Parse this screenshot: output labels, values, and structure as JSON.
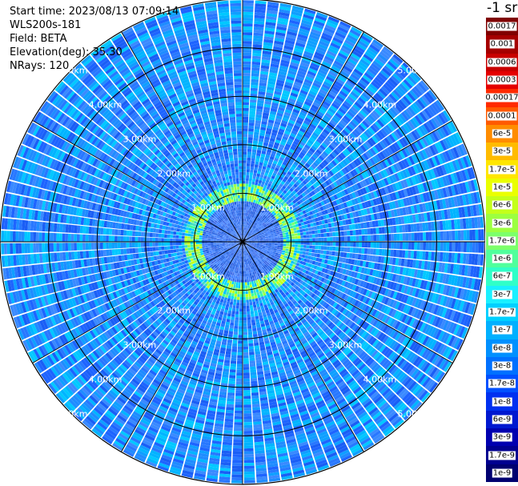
{
  "info": {
    "start_time": "Start time: 2023/08/13 07:09:14",
    "device": "WLS200s-181",
    "field": "Field: BETA",
    "elevation": "Elevation(deg): 35.30",
    "nrays": "NRays: 120"
  },
  "colorbar": {
    "title": "-1 sr",
    "levels": [
      {
        "label": "0.0017",
        "color": "#800000"
      },
      {
        "label": "0.001",
        "color": "#a50000"
      },
      {
        "label": "0.0006",
        "color": "#c80000"
      },
      {
        "label": "0.0003",
        "color": "#e40000"
      },
      {
        "label": "0.00017",
        "color": "#ff2a00"
      },
      {
        "label": "0.0001",
        "color": "#ff5a00"
      },
      {
        "label": "6e-5",
        "color": "#ff8c00"
      },
      {
        "label": "3e-5",
        "color": "#ffbb00"
      },
      {
        "label": "1.7e-5",
        "color": "#ffe600"
      },
      {
        "label": "1e-5",
        "color": "#eaff00"
      },
      {
        "label": "6e-6",
        "color": "#c4ff1a"
      },
      {
        "label": "3e-6",
        "color": "#9cff40"
      },
      {
        "label": "1.7e-6",
        "color": "#7cff6a"
      },
      {
        "label": "1e-6",
        "color": "#50ff9c"
      },
      {
        "label": "6e-7",
        "color": "#30ffc8"
      },
      {
        "label": "3e-7",
        "color": "#1af0ff"
      },
      {
        "label": "1.7e-7",
        "color": "#00d0ff"
      },
      {
        "label": "1e-7",
        "color": "#00b0ff"
      },
      {
        "label": "6e-8",
        "color": "#0090ff"
      },
      {
        "label": "3e-8",
        "color": "#0070ff"
      },
      {
        "label": "1.7e-8",
        "color": "#0050ff"
      },
      {
        "label": "1e-8",
        "color": "#0030f0"
      },
      {
        "label": "6e-9",
        "color": "#0018d0"
      },
      {
        "label": "3e-9",
        "color": "#0000b0"
      },
      {
        "label": "1.7e-9",
        "color": "#000090"
      },
      {
        "label": "1e-9",
        "color": "#000070"
      }
    ]
  },
  "chart_data": {
    "type": "heatmap",
    "projection": "polar-ppi",
    "title": "",
    "field": "BETA",
    "unit": "-1 sr",
    "elevation_deg": 35.3,
    "n_rays": 120,
    "range_max_km": 5.0,
    "range_rings": [
      {
        "km": 1.0,
        "label": "1.00km"
      },
      {
        "km": 2.0,
        "label": "2.00km"
      },
      {
        "km": 3.0,
        "label": "3.00km"
      },
      {
        "km": 4.0,
        "label": "4.00km"
      },
      {
        "km": 5.0,
        "label": "5.00km"
      }
    ],
    "dominant_value_range": [
      "1e-8",
      "1e-7"
    ],
    "near_range_band_km": [
      0.8,
      1.2
    ],
    "near_range_band_values": [
      "1e-7",
      "6e-6"
    ],
    "grid": true
  }
}
